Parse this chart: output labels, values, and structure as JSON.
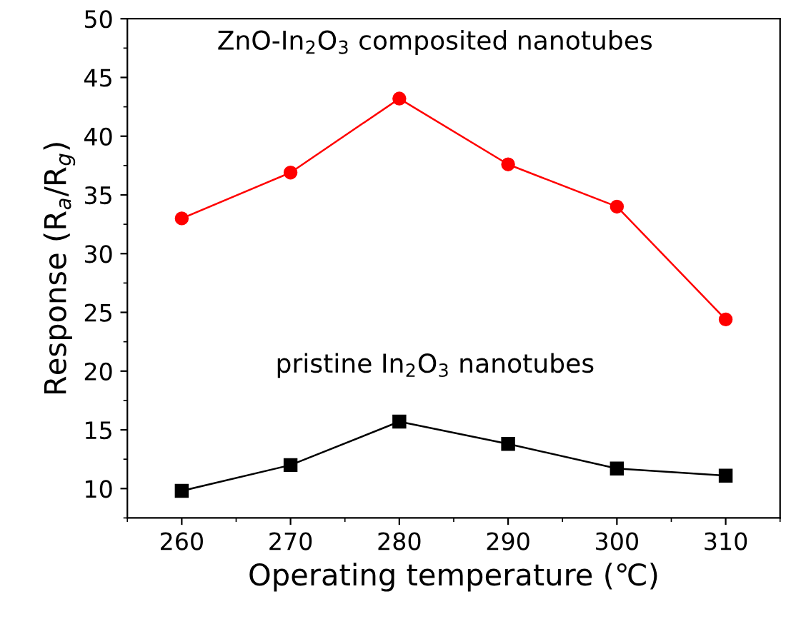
{
  "chart_data": {
    "type": "line",
    "xlabel": "Operating temperature (℃)",
    "ylabel": "Response (R$_{a}$/R$_{g}$)",
    "x": [
      260,
      270,
      280,
      290,
      300,
      310
    ],
    "series": [
      {
        "name": "ZnO-In$_{2}$O$_{3}$ composited nanotubes",
        "color": "#ff0000",
        "marker": "circle",
        "values": [
          33.0,
          36.9,
          43.2,
          37.6,
          34.0,
          24.4
        ]
      },
      {
        "name": "pristine In$_{2}$O$_{3}$ nanotubes",
        "color": "#000000",
        "marker": "square",
        "values": [
          9.8,
          12.0,
          15.7,
          13.8,
          11.7,
          11.1
        ]
      }
    ],
    "xlim": [
      255,
      315
    ],
    "xticks": [
      260,
      270,
      280,
      290,
      300,
      310
    ],
    "ylim": [
      7.5,
      50
    ],
    "yticks": [
      10,
      15,
      20,
      25,
      30,
      35,
      40,
      45,
      50
    ],
    "grid": false,
    "legend": false
  }
}
